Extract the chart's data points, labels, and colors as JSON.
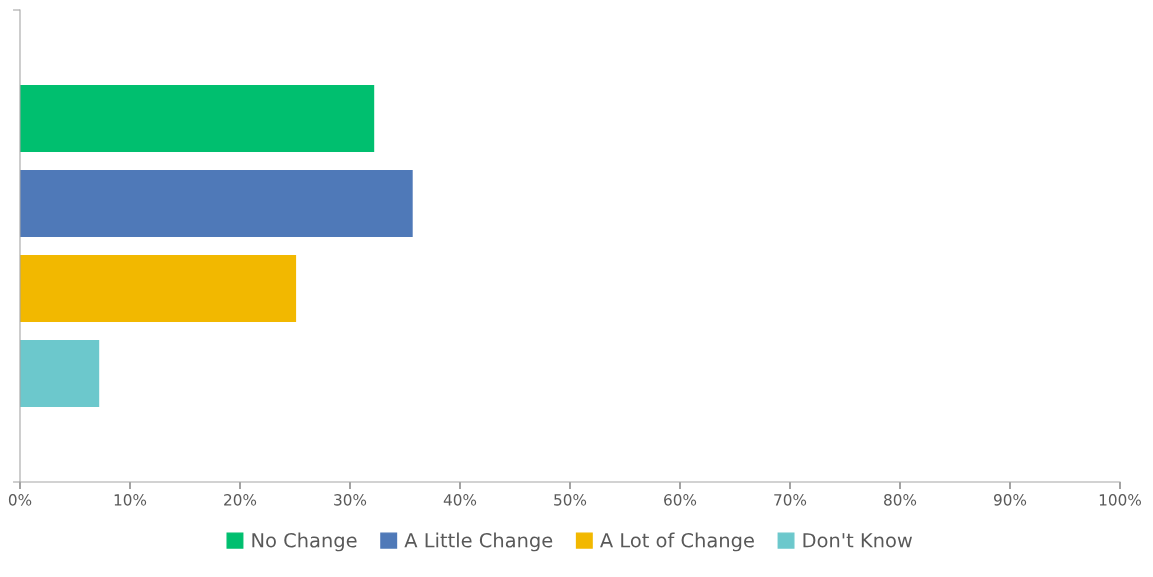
{
  "chart_data": {
    "type": "bar",
    "orientation": "horizontal",
    "categories": [
      null
    ],
    "series": [
      {
        "name": "No Change",
        "color": "#00bf6f",
        "values": [
          32.2
        ]
      },
      {
        "name": "A Little Change",
        "color": "#4f79b8",
        "values": [
          35.7
        ]
      },
      {
        "name": "A Lot of Change",
        "color": "#f2b800",
        "values": [
          25.1
        ]
      },
      {
        "name": "Don't Know",
        "color": "#6cc8cc",
        "values": [
          7.2
        ]
      }
    ],
    "xlim": [
      0,
      100
    ],
    "xticks": [
      {
        "value": 0,
        "label": "0%"
      },
      {
        "value": 10,
        "label": "10%"
      },
      {
        "value": 20,
        "label": "20%"
      },
      {
        "value": 30,
        "label": "30%"
      },
      {
        "value": 40,
        "label": "40%"
      },
      {
        "value": 50,
        "label": "50%"
      },
      {
        "value": 60,
        "label": "60%"
      },
      {
        "value": 70,
        "label": "70%"
      },
      {
        "value": 80,
        "label": "80%"
      },
      {
        "value": 90,
        "label": "90%"
      },
      {
        "value": 100,
        "label": "100%"
      }
    ],
    "grid": false,
    "legend": "bottom"
  }
}
